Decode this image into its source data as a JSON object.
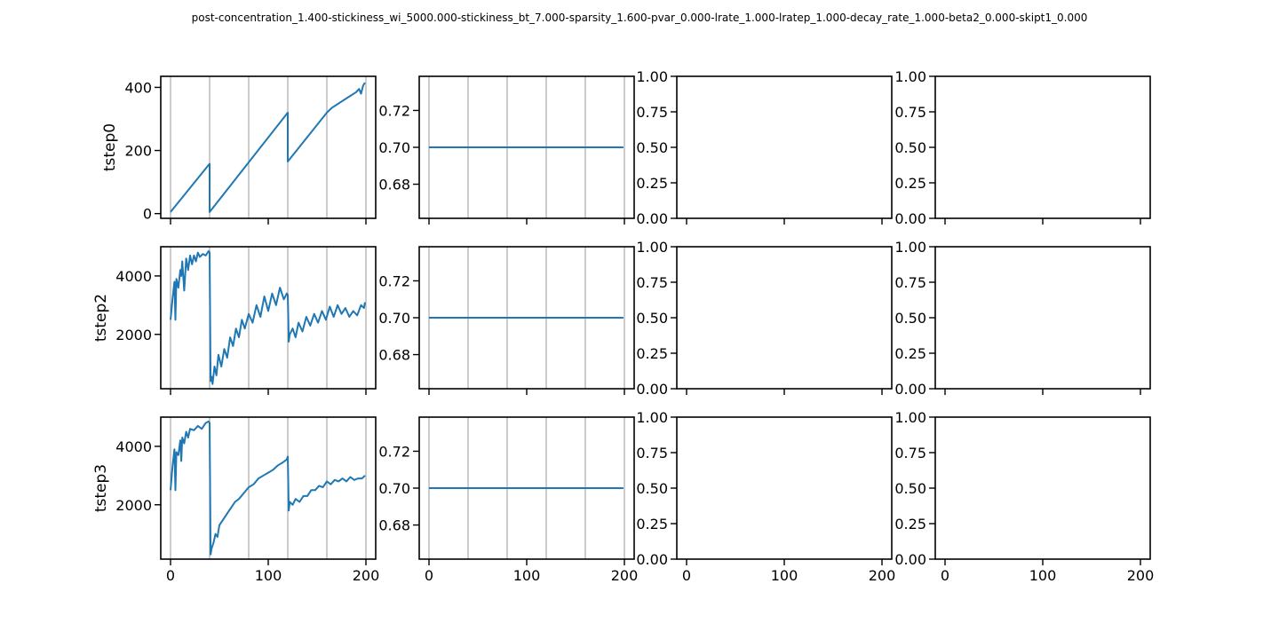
{
  "figure": {
    "suptitle": "post-concentration_1.400-stickiness_wi_5000.000-stickiness_bt_7.000-sparsity_1.600-pvar_0.000-lrate_1.000-lratep_1.000-decay_rate_1.000-beta2_0.000-skipt1_0.000"
  },
  "colors": {
    "line": "#1f77b4",
    "vline": "#808080",
    "axes": "#000000"
  },
  "chart_data": [
    {
      "type": "line",
      "row": 0,
      "col": 0,
      "ylabel": "tstep0",
      "xlim": [
        -10,
        210
      ],
      "ylim": [
        -15,
        435
      ],
      "xticks": [
        0,
        100,
        200
      ],
      "xtick_labels_visible": false,
      "yticks": [
        0,
        200,
        400
      ],
      "ytick_labels": [
        "0",
        "200",
        "400"
      ],
      "vlines": [
        0,
        40,
        80,
        120,
        160,
        200
      ],
      "series": [
        {
          "x": [
            0,
            40,
            40,
            120,
            120,
            160,
            165,
            170,
            175,
            180,
            185,
            190,
            193,
            195,
            197,
            199
          ],
          "y": [
            5,
            158,
            5,
            320,
            165,
            320,
            335,
            345,
            355,
            365,
            375,
            385,
            395,
            380,
            405,
            415
          ]
        }
      ]
    },
    {
      "type": "line",
      "row": 0,
      "col": 1,
      "ylabel": "",
      "xlim": [
        -10,
        210
      ],
      "ylim": [
        0.6615,
        0.7385
      ],
      "xticks": [
        0,
        100,
        200
      ],
      "xtick_labels_visible": false,
      "yticks": [
        0.68,
        0.7,
        0.72
      ],
      "ytick_labels": [
        "0.68",
        "0.70",
        "0.72"
      ],
      "vlines": [
        0,
        40,
        80,
        120,
        160,
        200
      ],
      "series": [
        {
          "x": [
            0,
            199
          ],
          "y": [
            0.7,
            0.7
          ]
        }
      ]
    },
    {
      "type": "line",
      "row": 0,
      "col": 2,
      "ylabel": "",
      "xlim": [
        -10,
        210
      ],
      "ylim": [
        0,
        1
      ],
      "xticks": [
        0,
        100,
        200
      ],
      "xtick_labels_visible": false,
      "yticks": [
        0,
        0.25,
        0.5,
        0.75,
        1
      ],
      "ytick_labels": [
        "0.00",
        "0.25",
        "0.50",
        "0.75",
        "1.00"
      ],
      "vlines": [],
      "series": []
    },
    {
      "type": "line",
      "row": 0,
      "col": 3,
      "ylabel": "",
      "xlim": [
        -10,
        210
      ],
      "ylim": [
        0,
        1
      ],
      "xticks": [
        0,
        100,
        200
      ],
      "xtick_labels_visible": false,
      "yticks": [
        0,
        0.25,
        0.5,
        0.75,
        1
      ],
      "ytick_labels": [
        "0.00",
        "0.25",
        "0.50",
        "0.75",
        "1.00"
      ],
      "vlines": [],
      "series": []
    },
    {
      "type": "line",
      "row": 1,
      "col": 0,
      "ylabel": "tstep2",
      "xlim": [
        -10,
        210
      ],
      "ylim": [
        140,
        5000
      ],
      "xticks": [
        0,
        100,
        200
      ],
      "xtick_labels_visible": false,
      "yticks": [
        2000,
        4000
      ],
      "ytick_labels": [
        "2000",
        "4000"
      ],
      "vlines": [
        0,
        40,
        80,
        120,
        160,
        200
      ],
      "series": [
        {
          "x": [
            0,
            2,
            4,
            5,
            6,
            8,
            10,
            11,
            12,
            14,
            16,
            18,
            20,
            22,
            24,
            26,
            28,
            30,
            33,
            36,
            39,
            40,
            41,
            42,
            43,
            45,
            47,
            49,
            52,
            55,
            58,
            61,
            64,
            67,
            70,
            73,
            76,
            80,
            84,
            88,
            92,
            96,
            100,
            104,
            108,
            112,
            116,
            119,
            120,
            121,
            122,
            125,
            128,
            131,
            135,
            139,
            143,
            147,
            151,
            155,
            159,
            163,
            167,
            171,
            175,
            179,
            183,
            187,
            191,
            195,
            198,
            199
          ],
          "y": [
            2500,
            3200,
            3800,
            2500,
            3900,
            3600,
            4200,
            4000,
            4500,
            3500,
            4600,
            4200,
            4700,
            4400,
            4700,
            4500,
            4800,
            4650,
            4750,
            4700,
            4850,
            4800,
            400,
            550,
            300,
            900,
            600,
            1300,
            900,
            1500,
            1200,
            1900,
            1600,
            2200,
            1900,
            2500,
            2200,
            2700,
            2400,
            3000,
            2600,
            3300,
            2800,
            3400,
            3000,
            3600,
            3200,
            3400,
            3350,
            1750,
            2000,
            2200,
            1900,
            2400,
            2100,
            2600,
            2300,
            2700,
            2400,
            2800,
            2500,
            2950,
            2600,
            3000,
            2700,
            2900,
            2600,
            2800,
            2650,
            3000,
            2900,
            3100
          ]
        }
      ]
    },
    {
      "type": "line",
      "row": 1,
      "col": 1,
      "ylabel": "",
      "xlim": [
        -10,
        210
      ],
      "ylim": [
        0.6615,
        0.7385
      ],
      "xticks": [
        0,
        100,
        200
      ],
      "xtick_labels_visible": false,
      "yticks": [
        0.68,
        0.7,
        0.72
      ],
      "ytick_labels": [
        "0.68",
        "0.70",
        "0.72"
      ],
      "vlines": [
        0,
        40,
        80,
        120,
        160,
        200
      ],
      "series": [
        {
          "x": [
            0,
            199
          ],
          "y": [
            0.7,
            0.7
          ]
        }
      ]
    },
    {
      "type": "line",
      "row": 1,
      "col": 2,
      "ylabel": "",
      "xlim": [
        -10,
        210
      ],
      "ylim": [
        0,
        1
      ],
      "xticks": [
        0,
        100,
        200
      ],
      "xtick_labels_visible": false,
      "yticks": [
        0,
        0.25,
        0.5,
        0.75,
        1
      ],
      "ytick_labels": [
        "0.00",
        "0.25",
        "0.50",
        "0.75",
        "1.00"
      ],
      "vlines": [],
      "series": []
    },
    {
      "type": "line",
      "row": 1,
      "col": 3,
      "ylabel": "",
      "xlim": [
        -10,
        210
      ],
      "ylim": [
        0,
        1
      ],
      "xticks": [
        0,
        100,
        200
      ],
      "xtick_labels_visible": false,
      "yticks": [
        0,
        0.25,
        0.5,
        0.75,
        1
      ],
      "ytick_labels": [
        "0.00",
        "0.25",
        "0.50",
        "0.75",
        "1.00"
      ],
      "vlines": [],
      "series": []
    },
    {
      "type": "line",
      "row": 2,
      "col": 0,
      "ylabel": "tstep3",
      "xlim": [
        -10,
        210
      ],
      "ylim": [
        140,
        5000
      ],
      "xticks": [
        0,
        100,
        200
      ],
      "xtick_labels_visible": true,
      "xtick_labels": [
        "0",
        "100",
        "200"
      ],
      "yticks": [
        2000,
        4000
      ],
      "ytick_labels": [
        "2000",
        "4000"
      ],
      "vlines": [
        0,
        40,
        80,
        120,
        160,
        200
      ],
      "series": [
        {
          "x": [
            0,
            2,
            4,
            5,
            6,
            8,
            10,
            11,
            12,
            14,
            16,
            18,
            20,
            24,
            28,
            32,
            36,
            39,
            40,
            41,
            42,
            44,
            46,
            48,
            50,
            54,
            58,
            62,
            66,
            70,
            75,
            80,
            85,
            90,
            95,
            100,
            105,
            110,
            115,
            119,
            120,
            121,
            122,
            125,
            128,
            132,
            136,
            140,
            144,
            148,
            152,
            156,
            160,
            164,
            168,
            172,
            176,
            180,
            184,
            188,
            192,
            196,
            199
          ],
          "y": [
            2500,
            3300,
            3900,
            2500,
            3800,
            3700,
            4200,
            3500,
            4300,
            4100,
            4500,
            4300,
            4600,
            4550,
            4700,
            4600,
            4800,
            4850,
            4800,
            300,
            500,
            700,
            1000,
            900,
            1300,
            1500,
            1700,
            1900,
            2100,
            2200,
            2400,
            2600,
            2700,
            2900,
            3000,
            3100,
            3200,
            3350,
            3450,
            3550,
            3650,
            1800,
            2100,
            2000,
            2200,
            2100,
            2300,
            2300,
            2500,
            2500,
            2650,
            2600,
            2800,
            2700,
            2850,
            2800,
            2900,
            2800,
            2950,
            2850,
            2900,
            2900,
            3000
          ]
        }
      ]
    },
    {
      "type": "line",
      "row": 2,
      "col": 1,
      "ylabel": "",
      "xlim": [
        -10,
        210
      ],
      "ylim": [
        0.6615,
        0.7385
      ],
      "xticks": [
        0,
        100,
        200
      ],
      "xtick_labels_visible": true,
      "xtick_labels": [
        "0",
        "100",
        "200"
      ],
      "yticks": [
        0.68,
        0.7,
        0.72
      ],
      "ytick_labels": [
        "0.68",
        "0.70",
        "0.72"
      ],
      "vlines": [
        0,
        40,
        80,
        120,
        160,
        200
      ],
      "series": [
        {
          "x": [
            0,
            199
          ],
          "y": [
            0.7,
            0.7
          ]
        }
      ]
    },
    {
      "type": "line",
      "row": 2,
      "col": 2,
      "ylabel": "",
      "xlim": [
        -10,
        210
      ],
      "ylim": [
        0,
        1
      ],
      "xticks": [
        0,
        100,
        200
      ],
      "xtick_labels_visible": true,
      "xtick_labels": [
        "0",
        "100",
        "200"
      ],
      "yticks": [
        0,
        0.25,
        0.5,
        0.75,
        1
      ],
      "ytick_labels": [
        "0.00",
        "0.25",
        "0.50",
        "0.75",
        "1.00"
      ],
      "vlines": [],
      "series": []
    },
    {
      "type": "line",
      "row": 2,
      "col": 3,
      "ylabel": "",
      "xlim": [
        -10,
        210
      ],
      "ylim": [
        0,
        1
      ],
      "xticks": [
        0,
        100,
        200
      ],
      "xtick_labels_visible": true,
      "xtick_labels": [
        "0",
        "100",
        "200"
      ],
      "yticks": [
        0,
        0.25,
        0.5,
        0.75,
        1
      ],
      "ytick_labels": [
        "0.00",
        "0.25",
        "0.50",
        "0.75",
        "1.00"
      ],
      "vlines": [],
      "series": []
    }
  ]
}
